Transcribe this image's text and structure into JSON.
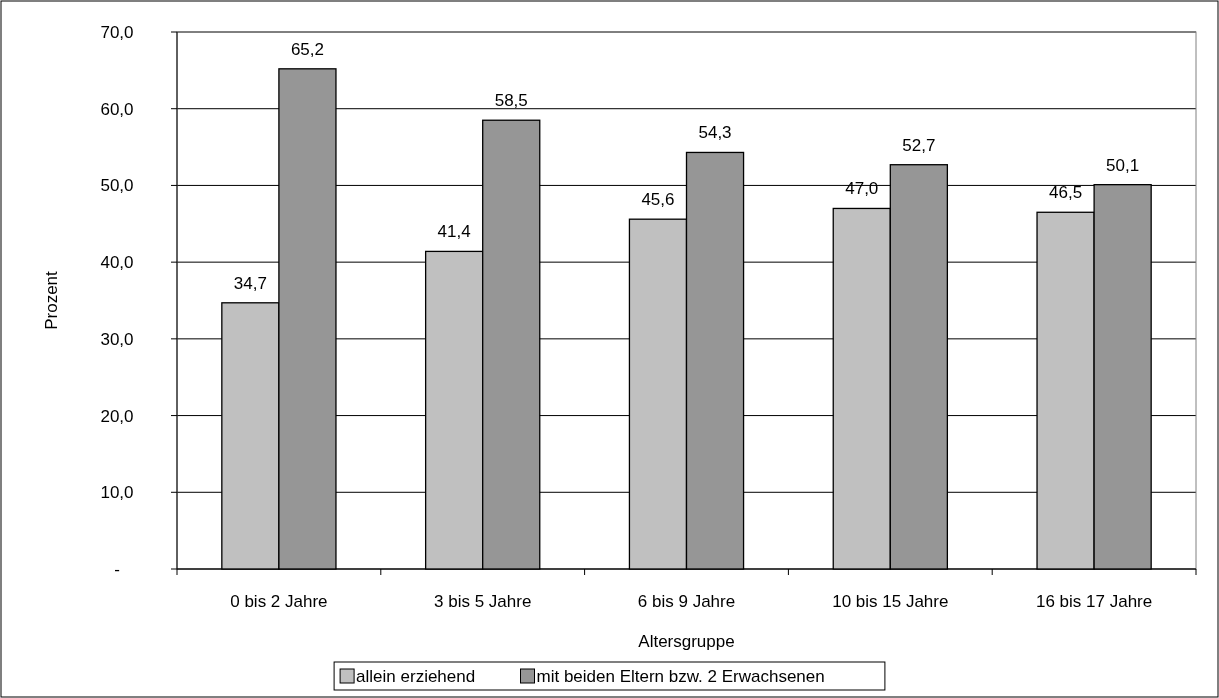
{
  "chart_data": {
    "type": "bar",
    "xlabel": "Altersgruppe",
    "ylabel": "Prozent",
    "categories": [
      "0 bis 2 Jahre",
      "3 bis 5 Jahre",
      "6 bis 9 Jahre",
      "10 bis 15 Jahre",
      "16 bis 17 Jahre"
    ],
    "series": [
      {
        "name": "allein erziehend",
        "color": "#c0c0c0",
        "values": [
          34.7,
          41.4,
          45.6,
          47.0,
          46.5
        ],
        "value_labels": [
          "34,7",
          "41,4",
          "45,6",
          "47,0",
          "46,5"
        ]
      },
      {
        "name": "mit beiden Eltern bzw. 2 Erwachsenen",
        "color": "#969696",
        "values": [
          65.2,
          58.5,
          54.3,
          52.7,
          50.1
        ],
        "value_labels": [
          "65,2",
          "58,5",
          "54,3",
          "52,7",
          "50,1"
        ]
      }
    ],
    "ylim": [
      0,
      70
    ],
    "yticks": [
      {
        "value": 0,
        "label": "-"
      },
      {
        "value": 10,
        "label": "10,0"
      },
      {
        "value": 20,
        "label": "20,0"
      },
      {
        "value": 30,
        "label": "30,0"
      },
      {
        "value": 40,
        "label": "40,0"
      },
      {
        "value": 50,
        "label": "50,0"
      },
      {
        "value": 60,
        "label": "60,0"
      },
      {
        "value": 70,
        "label": "70,0"
      }
    ],
    "grid": "y",
    "legend": "bottom"
  }
}
